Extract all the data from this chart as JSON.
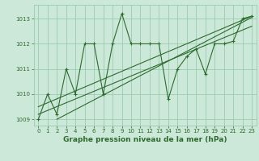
{
  "x_data": [
    0,
    1,
    2,
    3,
    4,
    5,
    6,
    7,
    8,
    9,
    10,
    11,
    12,
    13,
    14,
    15,
    16,
    17,
    18,
    19,
    20,
    21,
    22,
    23
  ],
  "y_main": [
    1009.0,
    1010.0,
    1009.2,
    1011.0,
    1010.0,
    1012.0,
    1012.0,
    1010.0,
    1012.0,
    1013.2,
    1012.0,
    1012.0,
    1012.0,
    1012.0,
    1009.8,
    1011.0,
    1011.5,
    1011.8,
    1010.8,
    1012.0,
    1012.0,
    1012.1,
    1013.0,
    1013.1
  ],
  "trend1_x": [
    0,
    23
  ],
  "trend1_y": [
    1009.5,
    1013.1
  ],
  "trend2_x": [
    0,
    23
  ],
  "trend2_y": [
    1009.2,
    1012.7
  ],
  "trend3_x": [
    2,
    23
  ],
  "trend3_y": [
    1009.0,
    1013.05
  ],
  "line_color": "#2d6a2d",
  "bg_color": "#cce8d8",
  "grid_color": "#99ccb0",
  "title": "Graphe pression niveau de la mer (hPa)",
  "xlim": [
    -0.5,
    23.5
  ],
  "ylim": [
    1008.75,
    1013.55
  ],
  "yticks": [
    1009,
    1010,
    1011,
    1012,
    1013
  ],
  "xticks": [
    0,
    1,
    2,
    3,
    4,
    5,
    6,
    7,
    8,
    9,
    10,
    11,
    12,
    13,
    14,
    15,
    16,
    17,
    18,
    19,
    20,
    21,
    22,
    23
  ],
  "tick_fontsize": 5,
  "title_fontsize": 6.5,
  "marker_size": 3.5,
  "line_width": 0.8
}
